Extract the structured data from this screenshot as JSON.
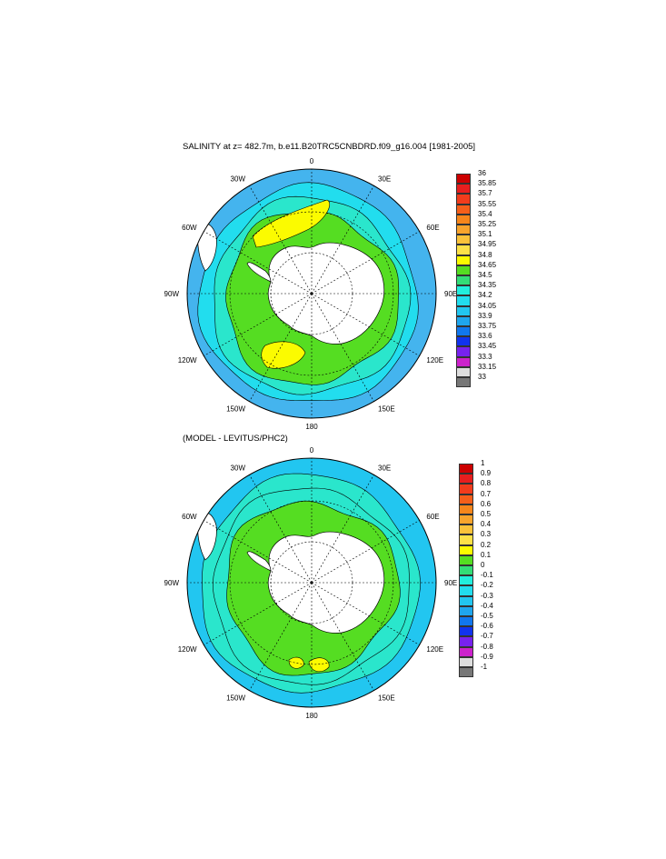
{
  "maps": [
    {
      "id": "top",
      "title": "SALINITY at z= 482.7m, b.e11.B20TRC5CNBDRD.f09_g16.004 [1981-2005]",
      "lon_labels": [
        "0",
        "30E",
        "60E",
        "90E",
        "120E",
        "150E",
        "180",
        "150W",
        "120W",
        "90W",
        "60W",
        "30W"
      ],
      "colorbar": {
        "labels": [
          "36",
          "35.85",
          "35.7",
          "35.55",
          "35.4",
          "35.25",
          "35.1",
          "34.95",
          "34.8",
          "34.65",
          "34.5",
          "34.35",
          "34.2",
          "34.05",
          "33.9",
          "33.75",
          "33.6",
          "33.45",
          "33.3",
          "33.15",
          "33"
        ],
        "colors": [
          "#cc0000",
          "#e81e1e",
          "#f23c1c",
          "#f55f1a",
          "#f7861b",
          "#f9a42c",
          "#fbc23a",
          "#fde148",
          "#fbfb00",
          "#55dd22",
          "#33dd77",
          "#22eedd",
          "#22ddee",
          "#22c6f0",
          "#1fa6ee",
          "#1177ee",
          "#1133ee",
          "#7722ee",
          "#cc22cc",
          "#dddddd",
          "#777777"
        ]
      },
      "colors": {
        "outer": "#44b4ee",
        "mid": "#22ddee",
        "inner": "#2ae6cc",
        "band": "#55dd22",
        "patch": "#fbfb00",
        "land": "#ffffff"
      }
    },
    {
      "id": "bottom",
      "title": "(MODEL - LEVITUS/PHC2)",
      "lon_labels": [
        "0",
        "30E",
        "60E",
        "90E",
        "120E",
        "150E",
        "180",
        "150W",
        "120W",
        "90W",
        "60W",
        "30W"
      ],
      "colorbar": {
        "labels": [
          "1",
          "0.9",
          "0.8",
          "0.7",
          "0.6",
          "0.5",
          "0.4",
          "0.3",
          "0.2",
          "0.1",
          "0",
          "-0.1",
          "-0.2",
          "-0.3",
          "-0.4",
          "-0.5",
          "-0.6",
          "-0.7",
          "-0.8",
          "-0.9",
          "-1"
        ],
        "colors": [
          "#cc0000",
          "#e81e1e",
          "#f23c1c",
          "#f55f1a",
          "#f7861b",
          "#f9a42c",
          "#fbc23a",
          "#fde148",
          "#fbfb00",
          "#55dd22",
          "#33dd77",
          "#22eedd",
          "#22ddee",
          "#22c6f0",
          "#1fa6ee",
          "#1177ee",
          "#1133ee",
          "#7722ee",
          "#cc22cc",
          "#dddddd",
          "#777777"
        ]
      },
      "colors": {
        "outer": "#22c6f0",
        "mid": "#2ae6cc",
        "inner": "#2ae6cc",
        "band": "#55dd22",
        "patch": "#fbfb00",
        "land": "#ffffff"
      }
    }
  ]
}
